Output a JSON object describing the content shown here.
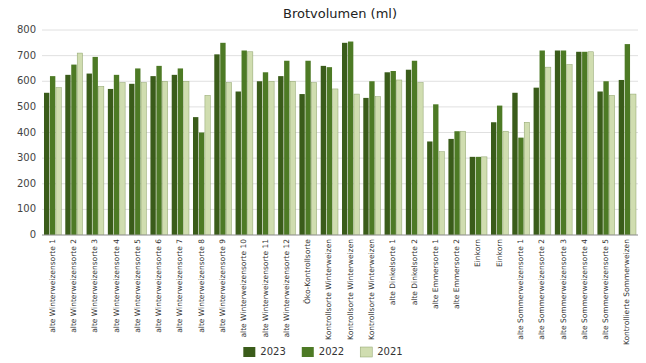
{
  "chart_data": {
    "type": "bar",
    "title": "Brotvolumen (ml)",
    "categories": [
      "alte Winterweizensorte 1",
      "alte Winterweizensorte 2",
      "alte Winterweizensorte 3",
      "alte Winterweizensorte 4",
      "alte Winterweizensorte 5",
      "alte Winterweizensorte 6",
      "alte Winterweizensorte 7",
      "alte Winterweizensorte 8",
      "alte Winterweizensorte 9",
      "alte Winterweizensorte 10",
      "alte Winterweizensorte 11",
      "alte Winterweizensorte 12",
      "Öko-Kontrollsorte",
      "Kontrollsorte Winterweizen",
      "Kontrollsorte Winterweizen",
      "Kontrollsorte Winterweizen",
      "alte Dinkelsorte 1",
      "alte Dinkelsorte 2",
      "alte Emmersorte 1",
      "alte Emmersorte 2",
      "Einkorn",
      "Einkorn",
      "alte Sommerweizensorte 1",
      "alte Sommerweizensorte 2",
      "alte Sommerweizensorte 3",
      "alte Sommerweizensorte 4",
      "alte Sommerweizensorte 5",
      "Kontrollierte Sommerweizen"
    ],
    "series": [
      {
        "name": "2023",
        "color": "#3a5c1a",
        "values": [
          555,
          625,
          630,
          570,
          590,
          620,
          625,
          460,
          705,
          560,
          600,
          620,
          550,
          660,
          750,
          535,
          635,
          645,
          365,
          375,
          305,
          440,
          555,
          575,
          720,
          715,
          560,
          605
        ]
      },
      {
        "name": "2022",
        "color": "#4d7a25",
        "values": [
          620,
          665,
          695,
          625,
          650,
          660,
          650,
          400,
          750,
          720,
          635,
          680,
          680,
          655,
          755,
          600,
          640,
          680,
          510,
          405,
          305,
          505,
          380,
          720,
          720,
          715,
          600,
          745
        ]
      },
      {
        "name": "2021",
        "color": "#d0ddb0",
        "values": [
          575,
          710,
          580,
          595,
          595,
          600,
          600,
          545,
          595,
          715,
          600,
          600,
          595,
          570,
          550,
          540,
          605,
          595,
          325,
          405,
          305,
          405,
          440,
          655,
          665,
          715,
          545,
          550
        ]
      }
    ],
    "ylim": [
      0,
      800
    ],
    "yticks": [
      0,
      100,
      200,
      300,
      400,
      500,
      600,
      700,
      800
    ],
    "grid": true,
    "legend": "bottom"
  }
}
